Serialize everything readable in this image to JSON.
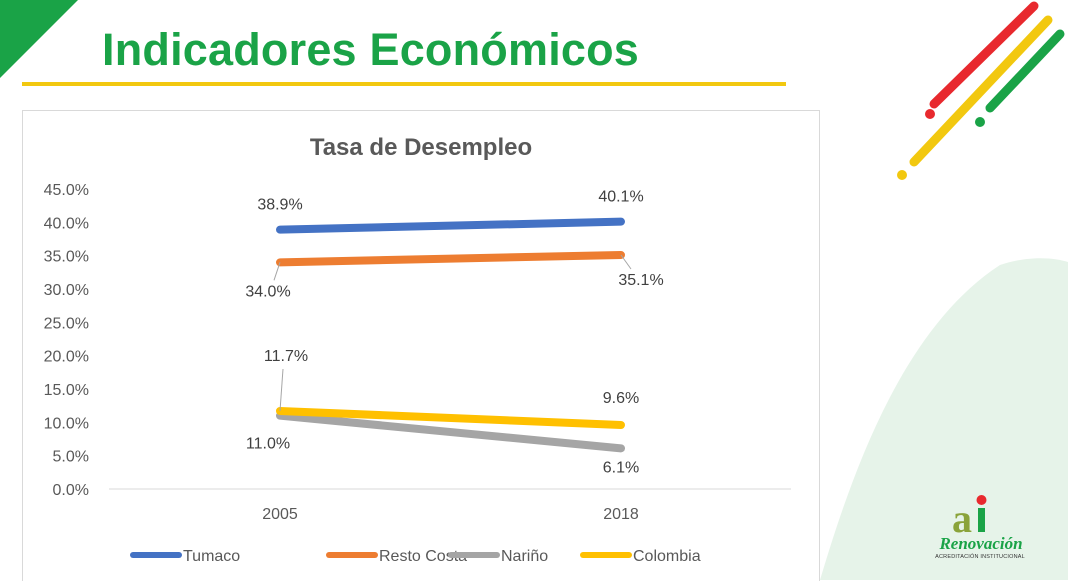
{
  "slide": {
    "title": "Indicadores Económicos"
  },
  "colors": {
    "title_green": "#1aa347",
    "accent_yellow": "#f2c80f",
    "accent_red": "#e8292e",
    "accent_green": "#1aa347"
  },
  "logo": {
    "mark_text": "ai",
    "name": "Renovación",
    "subtitle": "ACREDITACIÓN INSTITUCIONAL"
  },
  "chart_data": {
    "type": "line",
    "title": "Tasa de Desempleo",
    "categories": [
      "2005",
      "2018"
    ],
    "ylim": [
      0,
      45
    ],
    "y_ticks": [
      "0.0%",
      "5.0%",
      "10.0%",
      "15.0%",
      "20.0%",
      "25.0%",
      "30.0%",
      "35.0%",
      "40.0%",
      "45.0%"
    ],
    "y_tick_values": [
      0,
      5,
      10,
      15,
      20,
      25,
      30,
      35,
      40,
      45
    ],
    "grid": false,
    "legend_position": "bottom",
    "series": [
      {
        "name": "Tumaco",
        "color": "#4472c4",
        "values": [
          38.9,
          40.1
        ],
        "labels": [
          "38.9%",
          "40.1%"
        ]
      },
      {
        "name": "Resto Costa",
        "color": "#ed7d31",
        "values": [
          34.0,
          35.1
        ],
        "labels": [
          "34.0%",
          "35.1%"
        ]
      },
      {
        "name": "Nariño",
        "color": "#a5a5a5",
        "values": [
          11.0,
          6.1
        ],
        "labels": [
          "11.0%",
          "6.1%"
        ]
      },
      {
        "name": "Colombia",
        "color": "#ffc000",
        "values": [
          11.7,
          9.6
        ],
        "labels": [
          "11.7%",
          "9.6%"
        ]
      }
    ]
  }
}
